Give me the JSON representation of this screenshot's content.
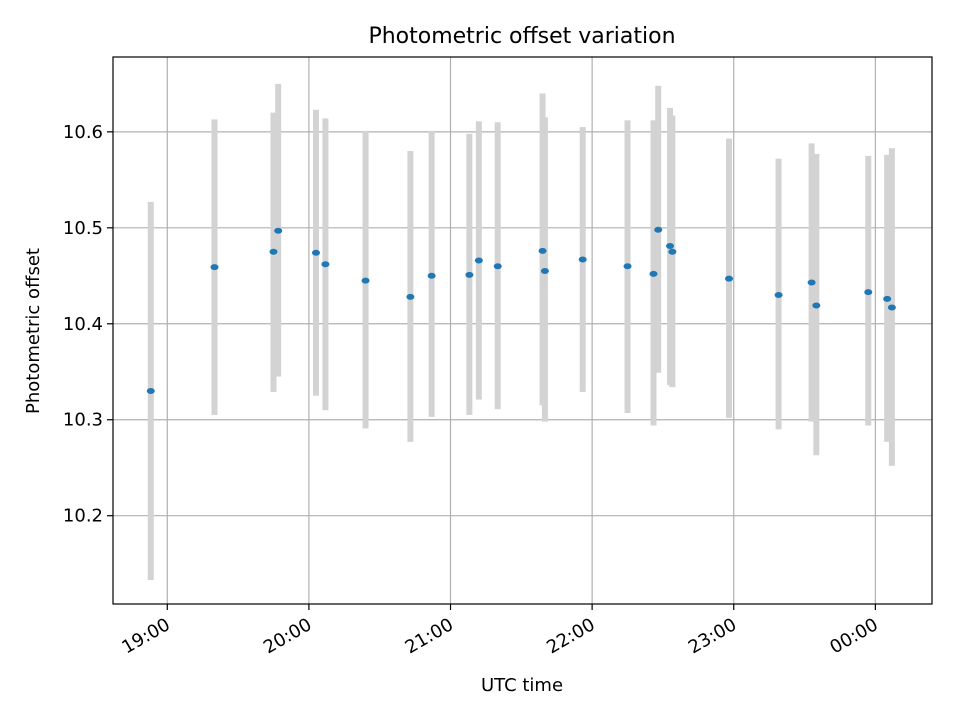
{
  "chart_data": {
    "type": "scatter",
    "title": "Photometric offset variation",
    "xlabel": "UTC time",
    "ylabel": "Photometric offset",
    "xlim": [
      "18:37",
      "00:24"
    ],
    "ylim": [
      10.108,
      10.678
    ],
    "x_ticks": [
      "19:00",
      "20:00",
      "21:00",
      "22:00",
      "23:00",
      "00:00"
    ],
    "y_ticks": [
      "10.2",
      "10.3",
      "10.4",
      "10.5",
      "10.6"
    ],
    "grid": true,
    "point_color": "#1f77b4",
    "errorbar_color": "#d3d3d3",
    "points": [
      {
        "x": "18:53",
        "y": 10.33,
        "lo": 10.133,
        "hi": 10.527
      },
      {
        "x": "19:20",
        "y": 10.459,
        "lo": 10.305,
        "hi": 10.613
      },
      {
        "x": "19:45",
        "y": 10.475,
        "lo": 10.329,
        "hi": 10.62
      },
      {
        "x": "19:47",
        "y": 10.497,
        "lo": 10.345,
        "hi": 10.65
      },
      {
        "x": "20:03",
        "y": 10.474,
        "lo": 10.325,
        "hi": 10.623
      },
      {
        "x": "20:07",
        "y": 10.462,
        "lo": 10.31,
        "hi": 10.614
      },
      {
        "x": "20:24",
        "y": 10.445,
        "lo": 10.291,
        "hi": 10.601
      },
      {
        "x": "20:43",
        "y": 10.428,
        "lo": 10.277,
        "hi": 10.58
      },
      {
        "x": "20:52",
        "y": 10.45,
        "lo": 10.303,
        "hi": 10.601
      },
      {
        "x": "21:08",
        "y": 10.451,
        "lo": 10.305,
        "hi": 10.598
      },
      {
        "x": "21:12",
        "y": 10.466,
        "lo": 10.321,
        "hi": 10.611
      },
      {
        "x": "21:20",
        "y": 10.46,
        "lo": 10.311,
        "hi": 10.61
      },
      {
        "x": "21:39",
        "y": 10.476,
        "lo": 10.315,
        "hi": 10.64
      },
      {
        "x": "21:40",
        "y": 10.455,
        "lo": 10.298,
        "hi": 10.615
      },
      {
        "x": "21:56",
        "y": 10.467,
        "lo": 10.329,
        "hi": 10.605
      },
      {
        "x": "22:15",
        "y": 10.46,
        "lo": 10.307,
        "hi": 10.612
      },
      {
        "x": "22:26",
        "y": 10.452,
        "lo": 10.294,
        "hi": 10.612
      },
      {
        "x": "22:28",
        "y": 10.498,
        "lo": 10.349,
        "hi": 10.648
      },
      {
        "x": "22:33",
        "y": 10.481,
        "lo": 10.336,
        "hi": 10.625
      },
      {
        "x": "22:34",
        "y": 10.475,
        "lo": 10.334,
        "hi": 10.617
      },
      {
        "x": "22:58",
        "y": 10.447,
        "lo": 10.302,
        "hi": 10.593
      },
      {
        "x": "23:19",
        "y": 10.43,
        "lo": 10.29,
        "hi": 10.572
      },
      {
        "x": "23:33",
        "y": 10.443,
        "lo": 10.298,
        "hi": 10.588
      },
      {
        "x": "23:35",
        "y": 10.419,
        "lo": 10.263,
        "hi": 10.577
      },
      {
        "x": "23:57",
        "y": 10.433,
        "lo": 10.294,
        "hi": 10.575
      },
      {
        "x": "00:05",
        "y": 10.426,
        "lo": 10.277,
        "hi": 10.576
      },
      {
        "x": "00:07",
        "y": 10.417,
        "lo": 10.252,
        "hi": 10.583
      }
    ]
  }
}
